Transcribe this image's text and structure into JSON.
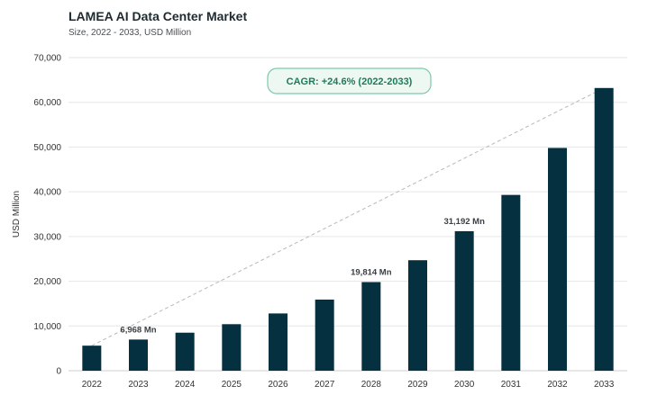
{
  "header": {
    "title": "LAMEA AI Data Center Market",
    "subtitle": "Size, 2022 - 2033, USD Million"
  },
  "chart_data": {
    "type": "bar",
    "title": "LAMEA AI Data Center Market",
    "subtitle": "Size, 2022 - 2033, USD Million",
    "xlabel": "",
    "ylabel": "USD Million",
    "categories": [
      "2022",
      "2023",
      "2024",
      "2025",
      "2026",
      "2027",
      "2028",
      "2029",
      "2030",
      "2031",
      "2032",
      "2033"
    ],
    "values": [
      5600,
      6968,
      8500,
      10400,
      12800,
      15900,
      19814,
      24700,
      31192,
      39300,
      49800,
      63200
    ],
    "ylim": [
      0,
      70000
    ],
    "yticks": [
      0,
      10000,
      20000,
      30000,
      40000,
      50000,
      60000,
      70000
    ],
    "ytick_labels": [
      "0",
      "10,000",
      "20,000",
      "30,000",
      "40,000",
      "50,000",
      "60,000",
      "70,000"
    ],
    "data_labels": [
      {
        "index": 1,
        "text": "6,968 Mn"
      },
      {
        "index": 6,
        "text": "19,814 Mn"
      },
      {
        "index": 8,
        "text": "31,192 Mn"
      }
    ],
    "annotation": "CAGR: +24.6% (2022-2033)",
    "grid": "horizontal",
    "bar_color": "#04303f",
    "trend_line_color": "#b8b8b8",
    "annotation_color": "#1e7a58",
    "annotation_border": "#7cc9ab",
    "annotation_bg": "#eef8f3"
  }
}
